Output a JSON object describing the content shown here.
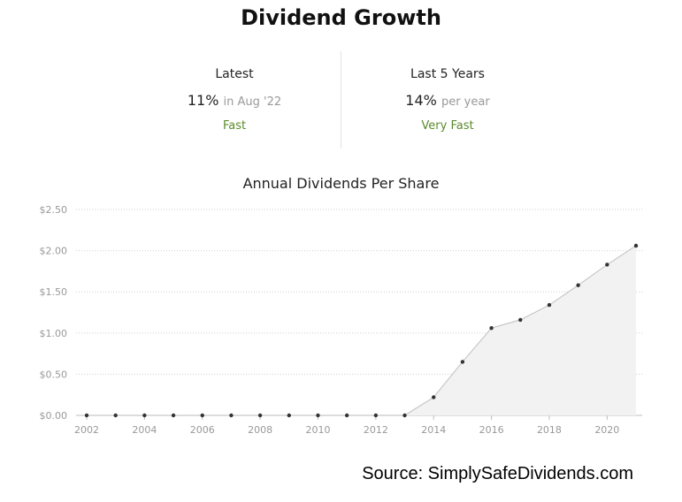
{
  "header": {
    "title": "Dividend Growth"
  },
  "stats": {
    "latest": {
      "label": "Latest",
      "value": "11%",
      "suffix": "in Aug '22",
      "rating": "Fast"
    },
    "five_year": {
      "label": "Last 5 Years",
      "value": "14%",
      "suffix": "per year",
      "rating": "Very Fast"
    }
  },
  "colors": {
    "rating": "#5a8a2a",
    "area": "#f2f2f2",
    "line": "#c8c8c8",
    "point": "#333333"
  },
  "chart_data": {
    "type": "area",
    "title": "Annual Dividends Per Share",
    "xlabel": "",
    "ylabel": "",
    "x": [
      2002,
      2003,
      2004,
      2005,
      2006,
      2007,
      2008,
      2009,
      2010,
      2011,
      2012,
      2013,
      2014,
      2015,
      2016,
      2017,
      2018,
      2019,
      2020,
      2021
    ],
    "values": [
      0,
      0,
      0,
      0,
      0,
      0,
      0,
      0,
      0,
      0,
      0,
      0,
      0.22,
      0.65,
      1.06,
      1.16,
      1.34,
      1.58,
      1.83,
      2.06
    ],
    "xlim": [
      2002,
      2021
    ],
    "ylim": [
      0,
      2.5
    ],
    "yticks": [
      0,
      0.5,
      1.0,
      1.5,
      2.0,
      2.5
    ],
    "ytick_labels": [
      "$0.00",
      "$0.50",
      "$1.00",
      "$1.50",
      "$2.00",
      "$2.50"
    ],
    "xticks": [
      2002,
      2004,
      2006,
      2008,
      2010,
      2012,
      2014,
      2016,
      2018,
      2020
    ],
    "xtick_labels": [
      "2002",
      "2004",
      "2006",
      "2008",
      "2010",
      "2012",
      "2014",
      "2016",
      "2018",
      "2020"
    ],
    "grid": true,
    "legend": "none"
  },
  "footer": {
    "source": "Source: SimplySafeDividends.com"
  }
}
